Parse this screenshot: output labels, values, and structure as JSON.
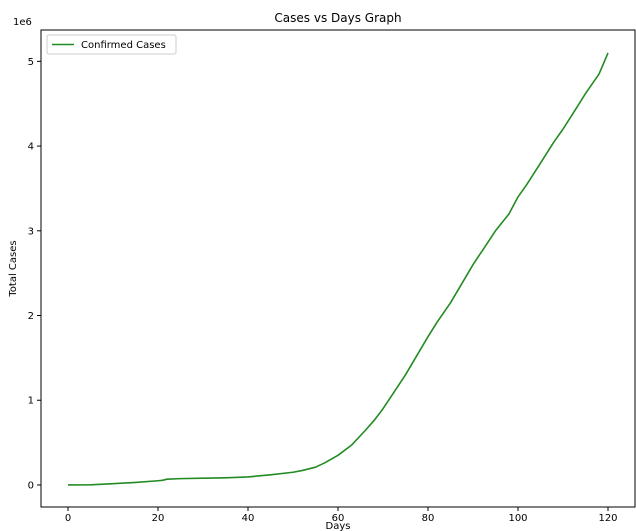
{
  "chart_data": {
    "type": "line",
    "title": "Cases vs Days Graph",
    "xlabel": "Days",
    "ylabel": "Total Cases",
    "y_offset_label": "1e6",
    "xlim": [
      -6,
      126
    ],
    "ylim": [
      -0.26,
      5.37
    ],
    "xticks": [
      0,
      20,
      40,
      60,
      80,
      100,
      120
    ],
    "xtick_labels": [
      "0",
      "20",
      "40",
      "60",
      "80",
      "100",
      "120"
    ],
    "yticks": [
      0,
      1,
      2,
      3,
      4,
      5
    ],
    "ytick_labels": [
      "0",
      "1",
      "2",
      "3",
      "4",
      "5"
    ],
    "grid": false,
    "legend_position": "top-left",
    "series": [
      {
        "name": "Confirmed Cases",
        "color": "#228B22",
        "x": [
          0,
          5,
          10,
          15,
          20,
          21,
          22,
          25,
          30,
          35,
          40,
          45,
          50,
          52,
          55,
          57,
          60,
          63,
          66,
          68,
          70,
          72,
          75,
          78,
          80,
          82,
          85,
          88,
          90,
          92,
          95,
          98,
          100,
          102,
          105,
          108,
          110,
          113,
          115,
          118,
          120
        ],
        "y": [
          0.0,
          0.002,
          0.015,
          0.03,
          0.05,
          0.055,
          0.068,
          0.075,
          0.08,
          0.085,
          0.095,
          0.12,
          0.15,
          0.17,
          0.21,
          0.26,
          0.35,
          0.47,
          0.64,
          0.76,
          0.9,
          1.06,
          1.3,
          1.57,
          1.75,
          1.92,
          2.15,
          2.42,
          2.6,
          2.76,
          3.0,
          3.2,
          3.4,
          3.55,
          3.8,
          4.05,
          4.2,
          4.45,
          4.62,
          4.85,
          5.1
        ]
      }
    ]
  }
}
